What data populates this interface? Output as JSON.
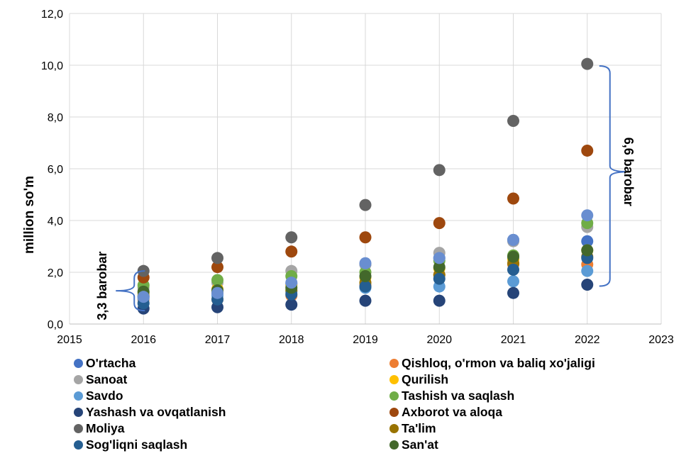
{
  "chart_data": {
    "type": "scatter",
    "xlabel": "",
    "ylabel": "million so'm",
    "xlim": [
      2015,
      2023
    ],
    "ylim": [
      0,
      12
    ],
    "x_ticks": [
      "2015",
      "2016",
      "2017",
      "2018",
      "2019",
      "2020",
      "2021",
      "2022",
      "2023"
    ],
    "y_ticks": [
      "0,0",
      "2,0",
      "4,0",
      "6,0",
      "8,0",
      "10,0",
      "12,0"
    ],
    "grid": "vertical and horizontal",
    "legend_position": "bottom, two columns",
    "annotations": [
      {
        "text": "3,3 barobar",
        "year": 2016,
        "from": 0.6,
        "to": 2.05
      },
      {
        "text": "6,6 barobar",
        "year": 2022,
        "from": 1.52,
        "to": 10.0
      }
    ],
    "series": [
      {
        "name": "O'rtacha",
        "color": "#4472C4",
        "x": [
          2016,
          2017,
          2018,
          2019,
          2020,
          2021,
          2022
        ],
        "y": [
          1.05,
          1.2,
          1.55,
          2.3,
          2.55,
          3.25,
          3.2
        ]
      },
      {
        "name": "Qishloq, o'rmon va baliq xo'jaligi",
        "color": "#ED7D31",
        "x": [
          2016,
          2017,
          2018,
          2019,
          2020,
          2021,
          2022
        ],
        "y": [
          0.95,
          0.95,
          1.1,
          1.5,
          1.9,
          2.3,
          2.3
        ]
      },
      {
        "name": "Sanoat",
        "color": "#A5A5A5",
        "x": [
          2016,
          2017,
          2018,
          2019,
          2020,
          2021,
          2022
        ],
        "y": [
          1.4,
          1.6,
          2.05,
          2.3,
          2.75,
          3.2,
          3.75
        ]
      },
      {
        "name": "Qurilish",
        "color": "#FFC000",
        "x": [
          2016,
          2017,
          2018,
          2019,
          2020,
          2021,
          2022
        ],
        "y": [
          1.2,
          1.35,
          1.5,
          1.8,
          2.15,
          2.5,
          2.85
        ]
      },
      {
        "name": "Savdo",
        "color": "#5B9BD5",
        "x": [
          2016,
          2017,
          2018,
          2019,
          2020,
          2021,
          2022
        ],
        "y": [
          1.0,
          1.1,
          1.25,
          1.4,
          1.45,
          1.65,
          2.05
        ]
      },
      {
        "name": "Tashish va saqlash",
        "color": "#70AD47",
        "x": [
          2016,
          2017,
          2018,
          2019,
          2020,
          2021,
          2022
        ],
        "y": [
          1.5,
          1.7,
          1.85,
          2.0,
          2.45,
          2.65,
          3.9
        ]
      },
      {
        "name": "Yashash va ovqatlanish",
        "color": "#264478",
        "x": [
          2016,
          2017,
          2018,
          2019,
          2020,
          2021,
          2022
        ],
        "y": [
          0.6,
          0.65,
          0.75,
          0.9,
          0.9,
          1.2,
          1.52
        ]
      },
      {
        "name": "Axborot va aloqa",
        "color": "#9E480E",
        "x": [
          2016,
          2017,
          2018,
          2019,
          2020,
          2021,
          2022
        ],
        "y": [
          1.8,
          2.2,
          2.8,
          3.35,
          3.9,
          4.85,
          6.7
        ]
      },
      {
        "name": "Moliya",
        "color": "#636363",
        "x": [
          2016,
          2017,
          2018,
          2019,
          2020,
          2021,
          2022
        ],
        "y": [
          2.05,
          2.55,
          3.35,
          4.6,
          5.95,
          7.85,
          10.05
        ]
      },
      {
        "name": "Ta'lim",
        "color": "#997300",
        "x": [
          2016,
          2017,
          2018,
          2019,
          2020,
          2021,
          2022
        ],
        "y": [
          1.1,
          1.25,
          1.3,
          1.6,
          1.9,
          2.35,
          2.6
        ]
      },
      {
        "name": "Sog'liqni saqlash",
        "color": "#255E91",
        "x": [
          2016,
          2017,
          2018,
          2019,
          2020,
          2021,
          2022
        ],
        "y": [
          0.8,
          0.95,
          1.15,
          1.45,
          1.75,
          2.1,
          2.55
        ]
      },
      {
        "name": "San'at",
        "color": "#43682B",
        "x": [
          2016,
          2017,
          2018,
          2019,
          2020,
          2021,
          2022
        ],
        "y": [
          1.25,
          1.3,
          1.4,
          1.85,
          2.2,
          2.6,
          2.85
        ]
      },
      {
        "name": "",
        "color": "#698ED0",
        "x": [
          2016,
          2017,
          2018,
          2019,
          2020,
          2021,
          2022
        ],
        "y": [
          1.05,
          1.2,
          1.6,
          2.35,
          2.55,
          3.25,
          4.2
        ]
      }
    ]
  }
}
